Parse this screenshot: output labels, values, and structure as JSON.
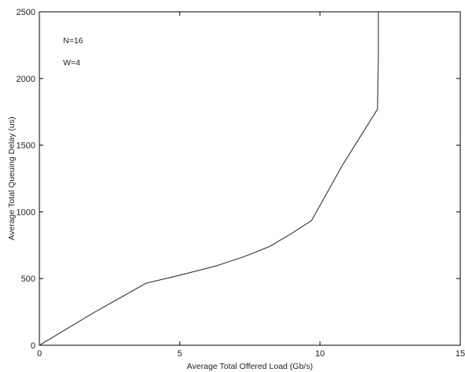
{
  "chart_data": {
    "type": "line",
    "title": "",
    "xlabel": "Average Total Offered Load (Gb/s)",
    "ylabel": "Average Total Queuing Delay (us)",
    "xlim": [
      0,
      15
    ],
    "ylim": [
      0,
      2500
    ],
    "xticks": [
      0,
      5,
      10,
      15
    ],
    "yticks": [
      0,
      500,
      1000,
      1500,
      2000,
      2500
    ],
    "grid": false,
    "legend": "none",
    "annotations": [
      {
        "text": "N=16"
      },
      {
        "text": "W=4"
      }
    ],
    "series": [
      {
        "color": "#333333",
        "x": [
          0,
          1.9,
          3.8,
          5.0,
          6.3,
          7.3,
          8.2,
          9.0,
          9.7,
          10.8,
          12.05,
          12.08,
          12.08
        ],
        "y": [
          0,
          240,
          465,
          525,
          595,
          665,
          740,
          840,
          935,
          1350,
          1770,
          2150,
          2500
        ]
      }
    ]
  }
}
